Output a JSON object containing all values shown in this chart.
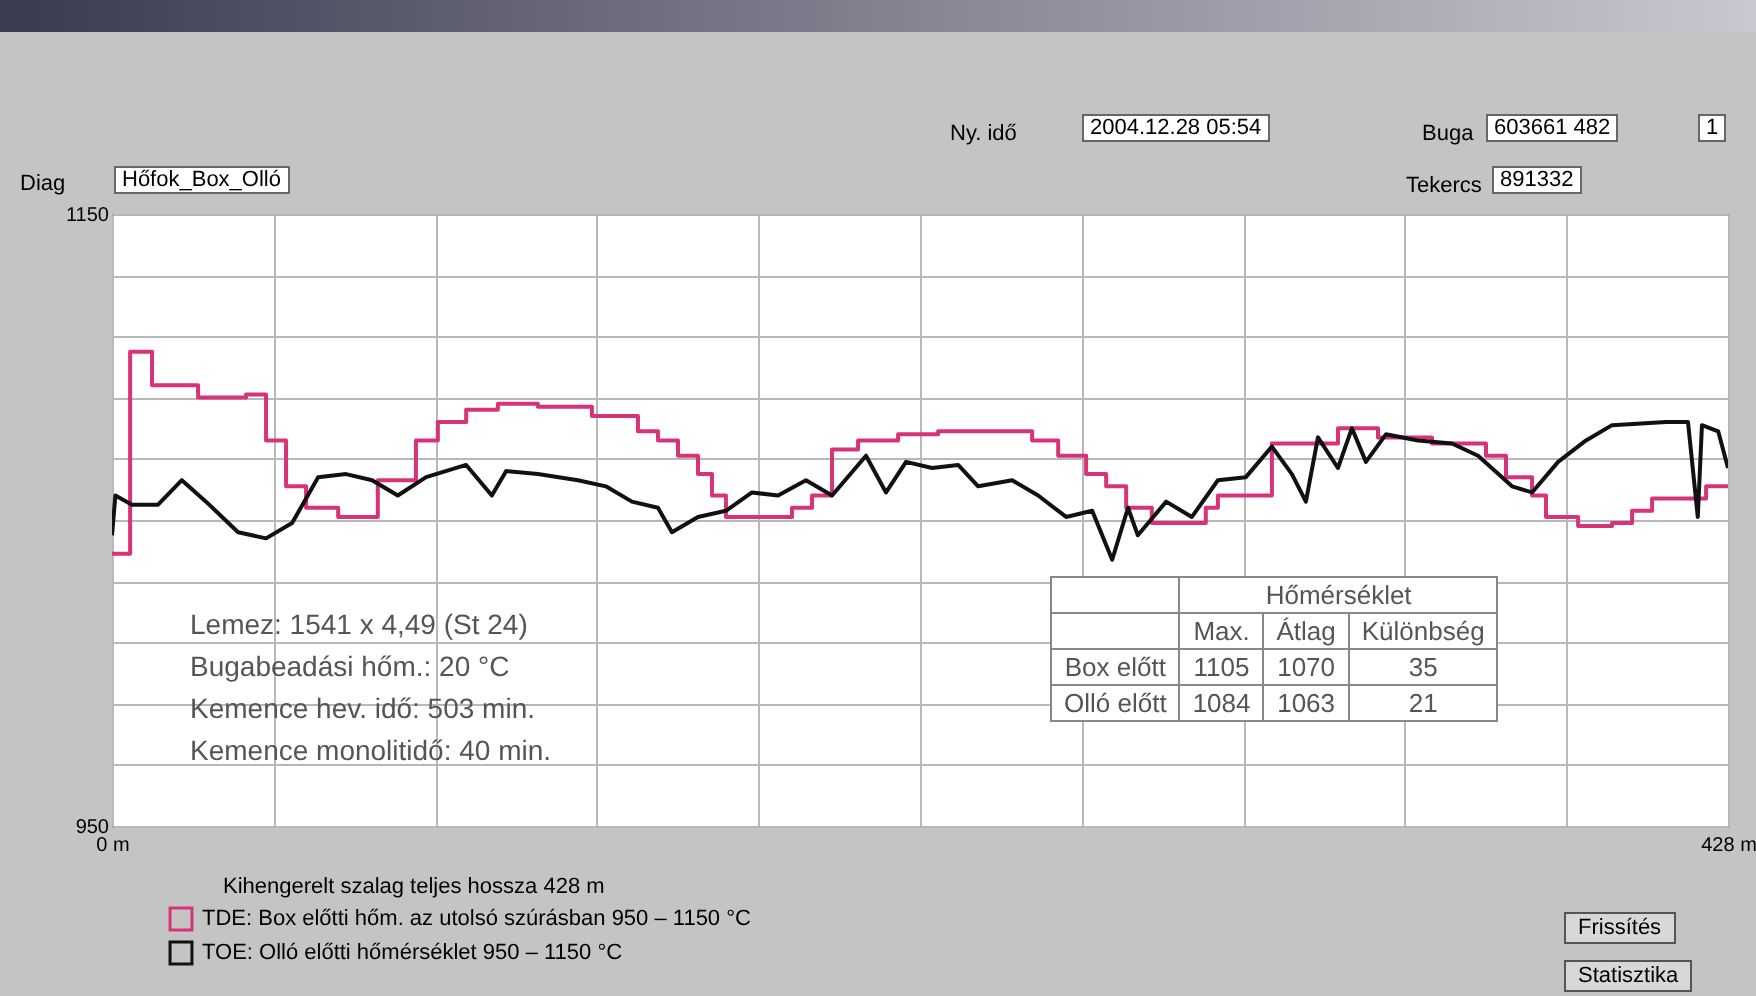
{
  "chart_data": {
    "type": "line",
    "xlabel": "Kihengerelt szalag teljes hossza 428 m",
    "xlim": [
      0,
      428
    ],
    "xticks": [
      {
        "value": 0,
        "label": "0 m"
      },
      {
        "value": 42.8,
        "label": null
      },
      {
        "value": 85.6,
        "label": null
      },
      {
        "value": 128.4,
        "label": null
      },
      {
        "value": 171.2,
        "label": null
      },
      {
        "value": 214,
        "label": null
      },
      {
        "value": 256.8,
        "label": null
      },
      {
        "value": 299.6,
        "label": null
      },
      {
        "value": 342.4,
        "label": null
      },
      {
        "value": 385.2,
        "label": null
      },
      {
        "value": 428,
        "label": "428 m"
      }
    ],
    "ylim": [
      950,
      1150
    ],
    "yticks": [
      950,
      {
        "value": 970,
        "label": null
      },
      {
        "value": 990,
        "label": null
      },
      {
        "value": 1010,
        "label": null
      },
      {
        "value": 1030,
        "label": null
      },
      {
        "value": 1050,
        "label": null
      },
      {
        "value": 1070,
        "label": null
      },
      {
        "value": 1090,
        "label": null
      },
      {
        "value": 1110,
        "label": null
      },
      {
        "value": 1130,
        "label": null
      },
      1150
    ],
    "grid": true,
    "legend": "bottom left",
    "series": [
      {
        "name": "TDE: Box előtti hőm. az utolsó szúrásban   950 – 1150 °C",
        "color": "#d6337a",
        "type": "step",
        "x": [
          0,
          4.8,
          10.6,
          22.8,
          35.5,
          40.8,
          46.1,
          51.4,
          59.9,
          70.4,
          80.5,
          86.3,
          93.8,
          102.2,
          112.8,
          127.1,
          139.3,
          144.6,
          149.9,
          155.2,
          158.9,
          162.6,
          180.1,
          185.4,
          190.7,
          197.6,
          208.2,
          218.8,
          243.7,
          250.6,
          258,
          263.3,
          268.6,
          275.4,
          289.7,
          292.9,
          307.2,
          324.7,
          335.3,
          349.6,
          363.9,
          369.2,
          376.1,
          379.8,
          388.3,
          397.3,
          402.6,
          407.9,
          422.2,
          428
        ],
        "values": [
          1039,
          1105,
          1094,
          1090,
          1091,
          1076,
          1061,
          1054,
          1051,
          1063,
          1076,
          1082,
          1086,
          1088,
          1087,
          1084,
          1079,
          1076,
          1071,
          1065,
          1058,
          1051,
          1054,
          1058,
          1073,
          1076,
          1078,
          1079,
          1076,
          1071,
          1065,
          1061,
          1054,
          1049,
          1054,
          1058,
          1075,
          1080,
          1077,
          1075,
          1071,
          1064,
          1058,
          1051,
          1048,
          1049,
          1053,
          1057,
          1061,
          1061
        ]
      },
      {
        "name": "TOE: Olló előtti hőmérséklet   950 – 1150 °C",
        "color": "#111111",
        "type": "line",
        "x": [
          0,
          0.9,
          5.3,
          12.2,
          18.5,
          24.9,
          33.4,
          40.8,
          47.7,
          54.6,
          62,
          68.9,
          75.7,
          83.2,
          93.8,
          100.6,
          104.4,
          112.8,
          123.4,
          130.8,
          137.7,
          144.6,
          148.3,
          155.2,
          162.6,
          169.5,
          176.4,
          183.8,
          190.7,
          199.7,
          205,
          210.3,
          217.2,
          224.1,
          229.4,
          238.4,
          245.3,
          252.7,
          259.6,
          264.9,
          269.1,
          271.7,
          279.2,
          286,
          292.9,
          300.3,
          307.2,
          312.5,
          316.2,
          319.4,
          324.7,
          328.4,
          332.1,
          337.4,
          345.9,
          354.9,
          361.8,
          370.8,
          376.1,
          383,
          390.4,
          397.3,
          411.6,
          417.4,
          420,
          421.1,
          425.4,
          428
        ],
        "values": [
          1045,
          1058,
          1055,
          1055,
          1063,
          1056,
          1046,
          1044,
          1049,
          1064,
          1065,
          1063,
          1058,
          1064,
          1068,
          1058,
          1066,
          1065,
          1063,
          1061,
          1056,
          1054,
          1046,
          1051,
          1053,
          1059,
          1058,
          1063,
          1058,
          1071,
          1059,
          1069,
          1067,
          1068,
          1061,
          1063,
          1058,
          1051,
          1053,
          1037,
          1054,
          1045,
          1056,
          1051,
          1063,
          1064,
          1074,
          1065,
          1056,
          1077,
          1067,
          1080,
          1069,
          1078,
          1076,
          1075,
          1071,
          1061,
          1059,
          1069,
          1076,
          1081,
          1082,
          1082,
          1051,
          1081,
          1079,
          1067
        ]
      }
    ],
    "annotations": [
      "Ny. idő",
      "2004.12.28 05:54",
      "Buga",
      "603661 482",
      "1",
      "Diag",
      "Hőfok_Box_Olló",
      "Tekercs",
      "891332",
      "Lemez: 1541 x 4,49 (St 24)",
      "Bugabeadási hőm.: 20 °C",
      "Kemence hev. idő: 503 min.",
      "Kemence monolitidő: 40 min.",
      "Hőmérséklet",
      "Max.",
      "Átlag",
      "Különbség",
      "Box előtt",
      "1105",
      "1070",
      "35",
      "Olló előtt",
      "1084",
      "1063",
      "21",
      "Frissítés",
      "Statisztika"
    ]
  }
}
